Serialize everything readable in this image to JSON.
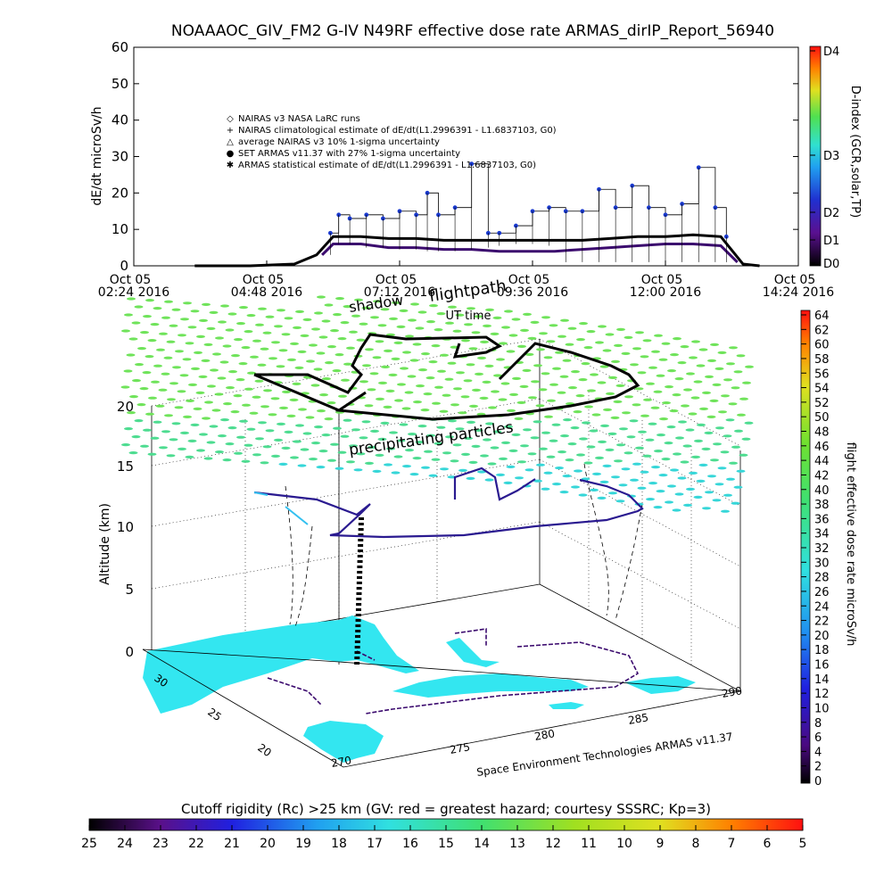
{
  "title": "NOAAAOC_GIV_FM2 G-IV    N49RF   effective dose rate ARMAS_dirIP_Report_56940",
  "colors": {
    "cyan_land": "#33e6f0",
    "dark_purple": "#3b0a6e",
    "green_particles": "#6fe35a",
    "blue_points": "#1a3ad0"
  },
  "top_chart": {
    "ylabel": "dE/dt microSv/h",
    "xlabel": "UT time",
    "yticks": [
      "0",
      "10",
      "20",
      "30",
      "40",
      "50",
      "60"
    ],
    "xticks": [
      {
        "line1": "Oct 05",
        "line2": "02:24 2016"
      },
      {
        "line1": "Oct 05",
        "line2": "04:48 2016"
      },
      {
        "line1": "Oct 05",
        "line2": "07:12 2016"
      },
      {
        "line1": "Oct 05",
        "line2": "09:36 2016"
      },
      {
        "line1": "Oct 05",
        "line2": "12:00 2016"
      },
      {
        "line1": "Oct 05",
        "line2": "14:24 2016"
      }
    ],
    "legend": [
      {
        "symbol": "◇",
        "text": "NAIRAS v3 NASA LaRC runs"
      },
      {
        "symbol": "+",
        "text": "NAIRAS climatological estimate of dE/dt(L1.2996391 - L1.6837103, G0)"
      },
      {
        "symbol": "△",
        "text": "average NAIRAS v3 10% 1-sigma uncertainty"
      },
      {
        "symbol": "●",
        "text": "SET ARMAS v11.37 with 27% 1-sigma uncertainty"
      },
      {
        "symbol": "✱",
        "text": "ARMAS statistical estimate of dE/dt(L1.2996391 - L1.6837103, G0)"
      }
    ],
    "dindex_label": "D-index (GCR,solar,TP)",
    "dindex_ticks": [
      "D0",
      "D1",
      "D2",
      "D3",
      "D4"
    ]
  },
  "chart_data": [
    {
      "type": "scatter",
      "title": "NOAAAOC_GIV_FM2 G-IV    N49RF   effective dose rate ARMAS_dirIP_Report_56940",
      "xlabel": "UT time",
      "ylabel": "dE/dt microSv/h",
      "ylim": [
        0,
        60
      ],
      "xlim": [
        "Oct 05 02:24 2016",
        "Oct 05 14:24 2016"
      ],
      "x_unit": "hours UT (Oct 05 2016)",
      "series": [
        {
          "name": "SET ARMAS v11.37 with 27% 1-sigma uncertainty",
          "x": [
            5.95,
            6.1,
            6.3,
            6.6,
            6.9,
            7.2,
            7.5,
            7.7,
            7.9,
            8.2,
            8.5,
            8.8,
            9.0,
            9.3,
            9.6,
            9.9,
            10.2,
            10.5,
            10.8,
            11.1,
            11.4,
            11.7,
            12.0,
            12.3,
            12.6,
            12.9,
            13.1
          ],
          "y": [
            9,
            14,
            13,
            14,
            13,
            15,
            14,
            20,
            14,
            16,
            28,
            9,
            9,
            11,
            15,
            16,
            15,
            15,
            21,
            16,
            22,
            16,
            14,
            17,
            27,
            16,
            8
          ]
        },
        {
          "name": "NAIRAS climatological estimate of dE/dt(L1.2996391 - L1.6837103, G0)",
          "x": [
            3.5,
            4.5,
            5.3,
            5.7,
            6.0,
            6.5,
            7.0,
            7.5,
            8.0,
            8.5,
            9.0,
            9.5,
            10.0,
            10.5,
            11.0,
            11.5,
            12.0,
            12.5,
            13.0,
            13.4,
            13.7
          ],
          "y": [
            0,
            0,
            0.5,
            3,
            8,
            8,
            7.5,
            7.5,
            7,
            7,
            7,
            7,
            7,
            7,
            7.5,
            8,
            8,
            8.5,
            8,
            0.5,
            0
          ]
        },
        {
          "name": "ARMAS statistical estimate of dE/dt(L1.2996391 - L1.6837103, G0)",
          "x": [
            5.8,
            6.0,
            6.5,
            7.0,
            7.5,
            8.0,
            8.5,
            9.0,
            9.5,
            10.0,
            10.5,
            11.0,
            11.5,
            12.0,
            12.5,
            13.0,
            13.3
          ],
          "y": [
            3,
            6,
            6,
            5,
            5,
            4.5,
            4.5,
            4,
            4,
            4,
            4.5,
            5,
            5.5,
            6,
            6,
            5.5,
            1
          ]
        }
      ],
      "colorbar": {
        "label": "D-index (GCR,solar,TP)",
        "ticks": [
          "D0",
          "D1",
          "D2",
          "D3",
          "D4"
        ]
      }
    },
    {
      "type": "scatter",
      "title": "flightpath",
      "zlabel": "Altitude (km)",
      "zticks": [
        0,
        5,
        10,
        15,
        20
      ],
      "lat_ticks": [
        20,
        25,
        30
      ],
      "lon_ticks": [
        270,
        275,
        280,
        285,
        290
      ],
      "annotations": [
        "shadow",
        "flightpath",
        "precipitating particles",
        "UT time"
      ],
      "colorbar": {
        "label": "flight effective dose rate microSv/h",
        "range": [
          0,
          64
        ],
        "ticks": [
          0,
          2,
          4,
          6,
          8,
          10,
          12,
          14,
          16,
          18,
          20,
          22,
          24,
          26,
          28,
          30,
          32,
          34,
          36,
          38,
          40,
          42,
          44,
          46,
          48,
          50,
          52,
          54,
          56,
          58,
          60,
          62,
          64
        ]
      }
    },
    {
      "type": "heatmap",
      "title": "Cutoff rigidity (Rc) >25 km (GV: red = greatest hazard; courtesy SSSRC; Kp=3)",
      "colorbar": {
        "ticks": [
          25,
          24,
          23,
          22,
          21,
          20,
          19,
          18,
          17,
          16,
          15,
          14,
          13,
          12,
          11,
          10,
          9,
          8,
          7,
          6,
          5
        ]
      }
    }
  ],
  "three_d": {
    "zlabel": "Altitude (km)",
    "zticks": [
      "0",
      "5",
      "10",
      "15",
      "20"
    ],
    "lat_ticks": [
      "30",
      "25",
      "20"
    ],
    "lon_ticks": [
      "270",
      "275",
      "280",
      "285",
      "290"
    ],
    "shadow_label": "shadow",
    "flightpath_label": "flightpath",
    "particles_label": "precipitating particles",
    "credit": "Space Environment Technologies ARMAS v11.37",
    "colorbar_label": "flight effective dose rate microSv/h",
    "colorbar_ticks": [
      "0",
      "2",
      "4",
      "6",
      "8",
      "10",
      "12",
      "14",
      "16",
      "18",
      "20",
      "22",
      "24",
      "26",
      "28",
      "30",
      "32",
      "34",
      "36",
      "38",
      "40",
      "42",
      "44",
      "46",
      "48",
      "50",
      "52",
      "54",
      "56",
      "58",
      "60",
      "62",
      "64"
    ]
  },
  "bottom_bar": {
    "title": "Cutoff rigidity (Rc) >25 km (GV: red = greatest hazard; courtesy SSSRC; Kp=3)",
    "ticks": [
      "25",
      "24",
      "23",
      "22",
      "21",
      "20",
      "19",
      "18",
      "17",
      "16",
      "15",
      "14",
      "13",
      "12",
      "11",
      "10",
      "9",
      "8",
      "7",
      "6",
      "5"
    ]
  }
}
